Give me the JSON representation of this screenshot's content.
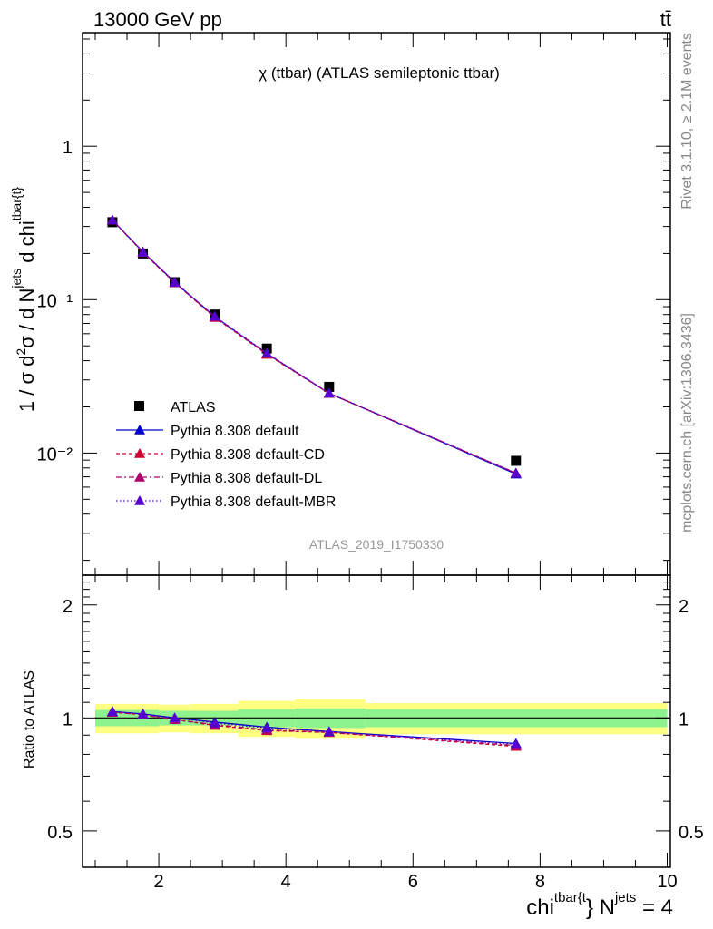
{
  "header": {
    "left": "13000 GeV pp",
    "right": "tt̄"
  },
  "plot_title": "χ (ttbar) (ATLAS semileptonic ttbar)",
  "watermark": "ATLAS_2019_I1750330",
  "side_text": {
    "rivet": "Rivet 3.1.10, ≥ 2.1M events",
    "site": "mcplots.cern.ch [arXiv:1306.3436]"
  },
  "colors": {
    "data": "#000000",
    "default": "#0000cc",
    "cd": "#cc0033",
    "dl": "#b0006e",
    "mbr": "#5500cc",
    "band_inner": "#8ef28e",
    "band_outer": "#ffff80"
  },
  "chart_data": [
    {
      "type": "scatter",
      "panel": "main",
      "title": "χ (ttbar) (ATLAS semileptonic ttbar)",
      "ylabel": "1 / σ d²σ / d N^jets d chi^tbar{t}",
      "yscale": "log",
      "ylim": [
        0.0016,
        5.5
      ],
      "xlim": [
        0.8,
        10.05
      ],
      "yticks": [
        {
          "v": 1,
          "label": "1"
        },
        {
          "v": 0.1,
          "label": "10⁻¹"
        },
        {
          "v": 0.01,
          "label": "10⁻²"
        }
      ],
      "legend_position": "center-left",
      "x": [
        1.27,
        1.75,
        2.25,
        2.88,
        3.7,
        4.68,
        7.62
      ],
      "series": [
        {
          "name": "ATLAS",
          "key": "data",
          "marker": "square",
          "values": [
            0.32,
            0.2,
            0.13,
            0.08,
            0.048,
            0.027,
            0.0089
          ]
        },
        {
          "name": "Pythia 8.308 default",
          "key": "default",
          "dash": "",
          "values": [
            0.33,
            0.205,
            0.13,
            0.0775,
            0.0445,
            0.0245,
            0.0073
          ]
        },
        {
          "name": "Pythia 8.308 default-CD",
          "key": "cd",
          "dash": "4,3",
          "values": [
            0.33,
            0.203,
            0.129,
            0.0765,
            0.044,
            0.0245,
            0.0074
          ]
        },
        {
          "name": "Pythia 8.308 default-DL",
          "key": "dl",
          "dash": "6,3,2,3",
          "values": [
            0.33,
            0.204,
            0.129,
            0.077,
            0.0445,
            0.0245,
            0.0074
          ]
        },
        {
          "name": "Pythia 8.308 default-MBR",
          "key": "mbr",
          "dash": "1.5,2.5",
          "values": [
            0.33,
            0.204,
            0.13,
            0.078,
            0.0448,
            0.0246,
            0.0074
          ]
        }
      ]
    },
    {
      "type": "line",
      "panel": "ratio",
      "ylabel": "Ratio to ATLAS",
      "xlabel": "chi^tbar{t} N^jets = 4",
      "yscale": "log",
      "ylim": [
        0.4,
        2.4
      ],
      "xlim": [
        0.8,
        10.05
      ],
      "yticks": [
        {
          "v": 0.5,
          "label": "0.5"
        },
        {
          "v": 1,
          "label": "1"
        },
        {
          "v": 2,
          "label": "2"
        }
      ],
      "xticks": [
        2,
        4,
        6,
        8,
        10
      ],
      "x": [
        1.27,
        1.75,
        2.25,
        2.88,
        3.7,
        4.68,
        7.62
      ],
      "bands": {
        "edges": [
          1.0,
          1.5,
          2.0,
          2.5,
          3.25,
          4.15,
          5.25,
          10.0
        ],
        "inner": [
          0.05,
          0.05,
          0.045,
          0.045,
          0.055,
          0.06,
          0.055
        ],
        "outer": [
          0.09,
          0.09,
          0.085,
          0.09,
          0.11,
          0.12,
          0.095
        ]
      },
      "series": [
        {
          "name": "Pythia 8.308 default",
          "key": "default",
          "dash": "",
          "values": [
            1.04,
            1.025,
            1.0,
            0.975,
            0.945,
            0.92,
            0.855
          ]
        },
        {
          "name": "Pythia 8.308 default-CD",
          "key": "cd",
          "dash": "4,3",
          "values": [
            1.035,
            1.02,
            0.99,
            0.955,
            0.925,
            0.915,
            0.84
          ]
        },
        {
          "name": "Pythia 8.308 default-DL",
          "key": "dl",
          "dash": "6,3,2,3",
          "values": [
            1.035,
            1.02,
            0.99,
            0.96,
            0.93,
            0.915,
            0.845
          ]
        },
        {
          "name": "Pythia 8.308 default-MBR",
          "key": "mbr",
          "dash": "1.5,2.5",
          "values": [
            1.04,
            1.025,
            1.0,
            0.97,
            0.94,
            0.92,
            0.85
          ]
        }
      ]
    }
  ]
}
